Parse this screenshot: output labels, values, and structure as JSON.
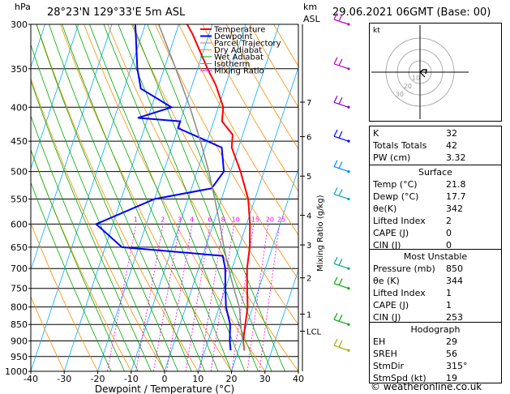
{
  "header": {
    "pressure_unit": "hPa",
    "location": "28°23'N  129°33'E  5m  ASL",
    "height_unit": "km",
    "height_ref": "ASL",
    "datetime": "29.06.2021  06GMT  (Base: 00)"
  },
  "chart_data": {
    "type": "skew-t log-p",
    "xlabel": "Dewpoint / Temperature (°C)",
    "ylabel": "hPa",
    "right_axis_label": "Mixing Ratio (g/kg)",
    "xlim": [
      -40,
      40
    ],
    "ylim": [
      1000,
      300
    ],
    "x_ticks": [
      "-40",
      "-30",
      "-20",
      "-10",
      "0",
      "10",
      "20",
      "30",
      "40"
    ],
    "pressure_levels": [
      300,
      350,
      400,
      450,
      500,
      550,
      600,
      650,
      700,
      750,
      800,
      850,
      900,
      950,
      1000
    ],
    "height_km_ticks": [
      {
        "label": "7",
        "p": 393
      },
      {
        "label": "6",
        "p": 443
      },
      {
        "label": "5",
        "p": 508
      },
      {
        "label": "4",
        "p": 582
      },
      {
        "label": "3",
        "p": 645
      },
      {
        "label": "2",
        "p": 723
      },
      {
        "label": "1",
        "p": 820
      },
      {
        "label": "LCL",
        "p": 870
      }
    ],
    "mixing_ratio_labels": [
      "1",
      "2",
      "3",
      "4",
      "6",
      "8",
      "10",
      "15",
      "20",
      "25"
    ],
    "legend": [
      {
        "name": "Temperature",
        "color": "#ff0000"
      },
      {
        "name": "Dewpoint",
        "color": "#0000ff"
      },
      {
        "name": "Parcel Trajectory",
        "color": "#888888"
      },
      {
        "name": "Dry Adiabat",
        "color": "#ff8c00"
      },
      {
        "name": "Wet Adiabat",
        "color": "#00aa00"
      },
      {
        "name": "Isotherm",
        "color": "#00aaff"
      },
      {
        "name": "Mixing Ratio",
        "color": "#ff00ff"
      }
    ],
    "series": [
      {
        "name": "Temperature",
        "color": "#ff0000",
        "points": [
          [
            21.8,
            930
          ],
          [
            20.5,
            900
          ],
          [
            19.5,
            850
          ],
          [
            18.5,
            800
          ],
          [
            16.5,
            750
          ],
          [
            14.5,
            700
          ],
          [
            13.2,
            650
          ],
          [
            11,
            600
          ],
          [
            8,
            550
          ],
          [
            3,
            500
          ],
          [
            -2,
            460
          ],
          [
            -3,
            440
          ],
          [
            -7.5,
            420
          ],
          [
            -8.5,
            400
          ],
          [
            -13,
            370
          ],
          [
            -17,
            350
          ],
          [
            -25,
            310
          ],
          [
            -27.5,
            300
          ]
        ]
      },
      {
        "name": "Dewpoint",
        "color": "#0000ff",
        "points": [
          [
            17.7,
            930
          ],
          [
            16.5,
            900
          ],
          [
            15,
            850
          ],
          [
            12,
            800
          ],
          [
            10,
            750
          ],
          [
            8,
            700
          ],
          [
            6,
            670
          ],
          [
            -25,
            650
          ],
          [
            -35,
            600
          ],
          [
            -20,
            550
          ],
          [
            -4,
            530
          ],
          [
            -2,
            500
          ],
          [
            -5,
            460
          ],
          [
            -20,
            430
          ],
          [
            -20,
            420
          ],
          [
            -33,
            415
          ],
          [
            -24,
            400
          ],
          [
            -35,
            375
          ],
          [
            -38,
            350
          ],
          [
            -43,
            300
          ]
        ]
      },
      {
        "name": "Parcel Trajectory",
        "color": "#888888",
        "points": [
          [
            21.8,
            930
          ],
          [
            19,
            870
          ],
          [
            16,
            800
          ],
          [
            12.5,
            750
          ],
          [
            9,
            700
          ],
          [
            5.5,
            650
          ],
          [
            2,
            600
          ],
          [
            -2,
            550
          ],
          [
            -6.5,
            500
          ],
          [
            -12,
            450
          ],
          [
            -18.5,
            400
          ],
          [
            -26.5,
            350
          ],
          [
            -36,
            300
          ]
        ]
      }
    ]
  },
  "hodograph": {
    "label": "kt",
    "ring_labels": [
      "10",
      "20",
      "30"
    ]
  },
  "indices": [
    {
      "label": "K",
      "value": "32"
    },
    {
      "label": "Totals Totals",
      "value": "42"
    },
    {
      "label": "PW (cm)",
      "value": "3.32"
    }
  ],
  "surface": {
    "title": "Surface",
    "rows": [
      {
        "label": "Temp (°C)",
        "value": "21.8"
      },
      {
        "label": "Dewp (°C)",
        "value": "17.7"
      },
      {
        "label": "θe(K)",
        "value": "342"
      },
      {
        "label": "Lifted Index",
        "value": "2"
      },
      {
        "label": "CAPE (J)",
        "value": "0"
      },
      {
        "label": "CIN (J)",
        "value": "0"
      }
    ]
  },
  "most_unstable": {
    "title": "Most Unstable",
    "rows": [
      {
        "label": "Pressure (mb)",
        "value": "850"
      },
      {
        "label": "θe (K)",
        "value": "344"
      },
      {
        "label": "Lifted Index",
        "value": "1"
      },
      {
        "label": "CAPE (J)",
        "value": "1"
      },
      {
        "label": "CIN (J)",
        "value": "253"
      }
    ]
  },
  "hodograph_table": {
    "title": "Hodograph",
    "rows": [
      {
        "label": "EH",
        "value": "29"
      },
      {
        "label": "SREH",
        "value": "56"
      },
      {
        "label": "StmDir",
        "value": "315°"
      },
      {
        "label": "StmSpd (kt)",
        "value": "19"
      }
    ]
  },
  "footer": {
    "copyright": "© weatheronline.co.uk"
  }
}
